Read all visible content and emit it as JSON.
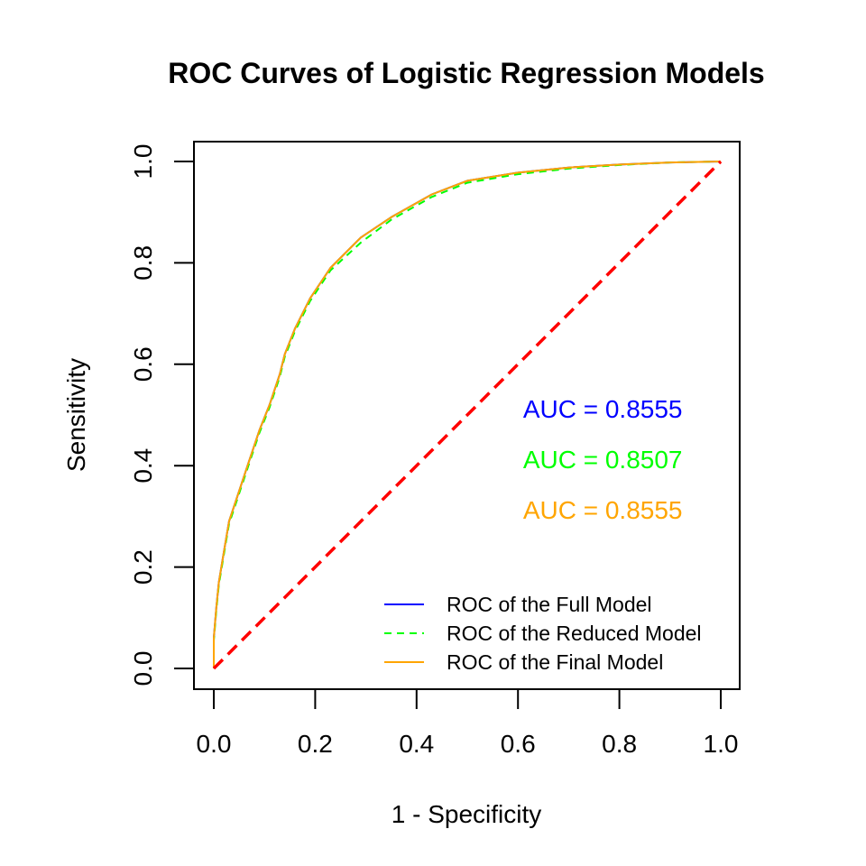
{
  "chart_data": {
    "type": "line",
    "title": "ROC Curves of Logistic Regression Models",
    "xlabel": "1 - Specificity",
    "ylabel": "Sensitivity",
    "xlim": [
      0,
      1
    ],
    "ylim": [
      0,
      1
    ],
    "x_ticks": [
      "0.0",
      "0.2",
      "0.4",
      "0.6",
      "0.8",
      "1.0"
    ],
    "y_ticks": [
      "0.0",
      "0.2",
      "0.4",
      "0.6",
      "0.8",
      "1.0"
    ],
    "grid": false,
    "legend_position": "bottom-right",
    "series": [
      {
        "name": "ROC of the Full Model",
        "color": "#0000ff",
        "dash": "solid",
        "points": [
          [
            0,
            0
          ],
          [
            0,
            0.06
          ],
          [
            0.005,
            0.12
          ],
          [
            0.01,
            0.17
          ],
          [
            0.02,
            0.23
          ],
          [
            0.03,
            0.29
          ],
          [
            0.05,
            0.35
          ],
          [
            0.07,
            0.41
          ],
          [
            0.09,
            0.47
          ],
          [
            0.11,
            0.52
          ],
          [
            0.13,
            0.58
          ],
          [
            0.14,
            0.62
          ],
          [
            0.16,
            0.67
          ],
          [
            0.19,
            0.73
          ],
          [
            0.23,
            0.79
          ],
          [
            0.29,
            0.85
          ],
          [
            0.35,
            0.89
          ],
          [
            0.43,
            0.935
          ],
          [
            0.5,
            0.962
          ],
          [
            0.6,
            0.978
          ],
          [
            0.7,
            0.988
          ],
          [
            0.8,
            0.994
          ],
          [
            0.9,
            0.998
          ],
          [
            1,
            1
          ]
        ]
      },
      {
        "name": "ROC of the Reduced Model",
        "color": "#00ff00",
        "dash": "dashed",
        "points": [
          [
            0,
            0
          ],
          [
            0,
            0.055
          ],
          [
            0.005,
            0.115
          ],
          [
            0.01,
            0.165
          ],
          [
            0.02,
            0.225
          ],
          [
            0.03,
            0.285
          ],
          [
            0.05,
            0.345
          ],
          [
            0.07,
            0.405
          ],
          [
            0.09,
            0.465
          ],
          [
            0.11,
            0.515
          ],
          [
            0.13,
            0.575
          ],
          [
            0.14,
            0.615
          ],
          [
            0.16,
            0.665
          ],
          [
            0.19,
            0.725
          ],
          [
            0.23,
            0.785
          ],
          [
            0.29,
            0.84
          ],
          [
            0.35,
            0.885
          ],
          [
            0.43,
            0.93
          ],
          [
            0.5,
            0.958
          ],
          [
            0.6,
            0.975
          ],
          [
            0.7,
            0.986
          ],
          [
            0.8,
            0.993
          ],
          [
            0.9,
            0.998
          ],
          [
            1,
            1
          ]
        ]
      },
      {
        "name": "ROC of the Final Model",
        "color": "#ffa500",
        "dash": "solid",
        "points": [
          [
            0,
            0
          ],
          [
            0,
            0.06
          ],
          [
            0.005,
            0.12
          ],
          [
            0.01,
            0.17
          ],
          [
            0.02,
            0.23
          ],
          [
            0.03,
            0.29
          ],
          [
            0.05,
            0.35
          ],
          [
            0.07,
            0.41
          ],
          [
            0.09,
            0.47
          ],
          [
            0.11,
            0.52
          ],
          [
            0.13,
            0.58
          ],
          [
            0.14,
            0.62
          ],
          [
            0.16,
            0.67
          ],
          [
            0.19,
            0.73
          ],
          [
            0.23,
            0.79
          ],
          [
            0.29,
            0.85
          ],
          [
            0.35,
            0.89
          ],
          [
            0.43,
            0.935
          ],
          [
            0.5,
            0.962
          ],
          [
            0.6,
            0.978
          ],
          [
            0.7,
            0.988
          ],
          [
            0.8,
            0.994
          ],
          [
            0.9,
            0.998
          ],
          [
            1,
            1
          ]
        ]
      }
    ],
    "reference_line": {
      "points": [
        [
          0,
          0
        ],
        [
          1,
          1
        ]
      ],
      "color": "#ff0000",
      "dash": "dashed"
    },
    "annotations": [
      {
        "text": "AUC =  0.8555",
        "color": "#0000ff",
        "x": 0.61,
        "y": 0.495
      },
      {
        "text": "AUC =  0.8507",
        "color": "#00ff00",
        "x": 0.61,
        "y": 0.395
      },
      {
        "text": "AUC =  0.8555",
        "color": "#ffa500",
        "x": 0.61,
        "y": 0.295
      }
    ]
  }
}
